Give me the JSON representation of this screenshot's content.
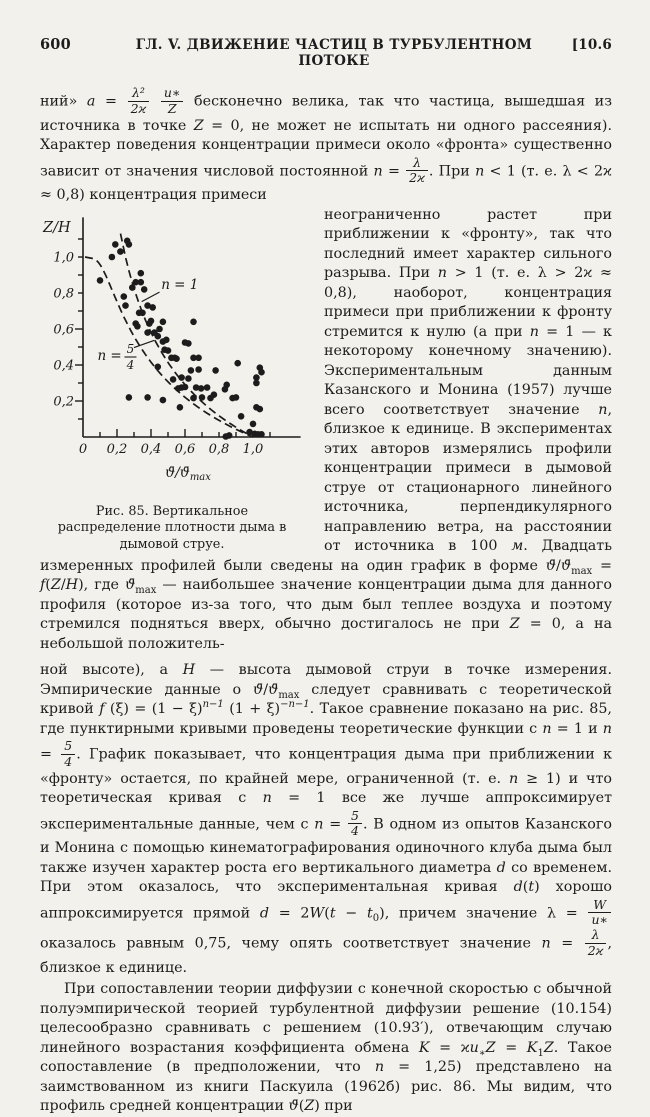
{
  "header": {
    "page_number": "600",
    "chapter": "ГЛ. V. ДВИЖЕНИЕ ЧАСТИЦ В ТУРБУЛЕНТНОМ ПОТОКЕ",
    "section_ref": "[10.6"
  },
  "figure": {
    "caption": "Рис. 85. Вертикальное распределение плотности дыма в дымовой струе."
  },
  "chart_data": {
    "type": "scatter",
    "figure_label": "Рис. 85",
    "xlabel": "ϑ̄/ϑ̄max",
    "ylabel": "Z/H",
    "xlim": [
      0,
      1.28
    ],
    "ylim": [
      0,
      1.22
    ],
    "xtick_values": [
      0,
      0.2,
      0.4,
      0.6,
      0.8,
      1.0
    ],
    "xtick_labels": [
      "0",
      "0,2",
      "0,4",
      "0,6",
      "0,8",
      "1,0"
    ],
    "ytick_values": [
      0.2,
      0.4,
      0.6,
      0.8,
      1.0
    ],
    "ytick_labels": [
      "0,2",
      "0,4",
      "0,6",
      "0,8",
      "1,0"
    ],
    "minor_tick_step": 0.1,
    "grid": false,
    "legend_position": "none",
    "curve_formula": "x = (1 − ξ)^(n−1) (1 + ξ)^(−n−1), ξ = Z/H",
    "curves": [
      {
        "name": "n = 1",
        "n": 1,
        "style": "dashed",
        "y_max": 1.13
      },
      {
        "name": "n = 5/4",
        "n": 1.25,
        "style": "dashed",
        "y_max": 1.0
      }
    ],
    "annotations": [
      {
        "label": "n = 1",
        "x": 0.46,
        "y": 0.845,
        "leader": [
          0.45,
          0.805,
          0.345,
          0.752
        ]
      },
      {
        "label": "n = 5/4",
        "pre": "n = ",
        "frac": [
          "5",
          "4"
        ],
        "x": 0.085,
        "y": 0.45,
        "leader": [
          0.3,
          0.497,
          0.42,
          0.537
        ]
      }
    ],
    "points": [
      [
        0.19,
        1.07
      ],
      [
        0.26,
        1.09
      ],
      [
        0.27,
        1.07
      ],
      [
        0.22,
        1.03
      ],
      [
        0.17,
        1.0
      ],
      [
        0.1,
        0.87
      ],
      [
        0.34,
        0.91
      ],
      [
        0.31,
        0.86
      ],
      [
        0.34,
        0.86
      ],
      [
        0.36,
        0.82
      ],
      [
        0.29,
        0.83
      ],
      [
        0.24,
        0.78
      ],
      [
        0.25,
        0.73
      ],
      [
        0.38,
        0.73
      ],
      [
        0.41,
        0.72
      ],
      [
        0.33,
        0.69
      ],
      [
        0.35,
        0.69
      ],
      [
        0.4,
        0.645
      ],
      [
        0.31,
        0.63
      ],
      [
        0.32,
        0.615
      ],
      [
        0.39,
        0.63
      ],
      [
        0.47,
        0.64
      ],
      [
        0.65,
        0.64
      ],
      [
        0.45,
        0.6
      ],
      [
        0.38,
        0.58
      ],
      [
        0.42,
        0.58
      ],
      [
        0.44,
        0.56
      ],
      [
        0.47,
        0.53
      ],
      [
        0.49,
        0.54
      ],
      [
        0.6,
        0.525
      ],
      [
        0.62,
        0.52
      ],
      [
        0.48,
        0.485
      ],
      [
        0.5,
        0.48
      ],
      [
        0.52,
        0.44
      ],
      [
        0.54,
        0.44
      ],
      [
        0.55,
        0.435
      ],
      [
        0.65,
        0.44
      ],
      [
        0.68,
        0.44
      ],
      [
        0.91,
        0.41
      ],
      [
        1.04,
        0.385
      ],
      [
        0.44,
        0.39
      ],
      [
        0.635,
        0.37
      ],
      [
        0.68,
        0.375
      ],
      [
        0.78,
        0.37
      ],
      [
        1.05,
        0.36
      ],
      [
        0.58,
        0.33
      ],
      [
        0.62,
        0.325
      ],
      [
        1.02,
        0.33
      ],
      [
        0.53,
        0.32
      ],
      [
        0.845,
        0.29
      ],
      [
        1.02,
        0.3
      ],
      [
        0.58,
        0.275
      ],
      [
        0.6,
        0.278
      ],
      [
        0.665,
        0.275
      ],
      [
        0.695,
        0.27
      ],
      [
        0.73,
        0.275
      ],
      [
        0.835,
        0.265
      ],
      [
        0.56,
        0.27
      ],
      [
        0.27,
        0.22
      ],
      [
        0.38,
        0.22
      ],
      [
        0.47,
        0.205
      ],
      [
        0.65,
        0.216
      ],
      [
        0.7,
        0.22
      ],
      [
        0.75,
        0.216
      ],
      [
        0.77,
        0.235
      ],
      [
        0.88,
        0.216
      ],
      [
        0.9,
        0.22
      ],
      [
        1.02,
        0.165
      ],
      [
        1.04,
        0.155
      ],
      [
        0.57,
        0.165
      ],
      [
        0.93,
        0.115
      ],
      [
        1.0,
        0.073
      ],
      [
        0.98,
        0.027
      ],
      [
        1.01,
        0.018
      ],
      [
        1.03,
        0.015
      ],
      [
        1.05,
        0.015
      ],
      [
        0.86,
        0.009
      ],
      [
        0.84,
        0.003
      ]
    ]
  },
  "paragraphs": [
    [
      {
        "t": "ний» "
      },
      {
        "i": "a"
      },
      {
        "t": " = "
      },
      {
        "frac": [
          "λ²",
          "2ϰ"
        ]
      },
      {
        "t": " "
      },
      {
        "frac": [
          "u∗",
          "Z"
        ]
      },
      {
        "t": " бесконечно велика, так что частица, вышедшая из источника в точке "
      },
      {
        "i": "Z"
      },
      {
        "t": " = 0, не может не испытать ни одного рассеяния). Характер поведения концентрации примеси около «фронта» существенно зависит от значения числовой постоянной "
      },
      {
        "i": "n"
      },
      {
        "t": " = "
      },
      {
        "frac": [
          "λ",
          "2ϰ"
        ]
      },
      {
        "t": ". При "
      },
      {
        "i": "n"
      },
      {
        "t": " < 1 (т. е. λ < 2ϰ ≈ 0,8) концентрация примеси"
      }
    ],
    [
      {
        "t": "неограниченно растет при приближении к «фронту», так что последний имеет характер сильного разрыва. При "
      },
      {
        "i": "n"
      },
      {
        "t": " > 1 (т. е. λ > 2ϰ ≈ 0,8), наоборот, концентрация примеси при приближении к фронту стремится к нулю (а при "
      },
      {
        "i": "n"
      },
      {
        "t": " = 1 — к некоторому конечному значению). Экспериментальным данным Казанского и Монина (1957) лучше всего соответствует значение "
      },
      {
        "i": "n"
      },
      {
        "t": ", близкое к единице. В экспериментах этих авторов измерялись профили концентрации примеси в дымовой струе от стационарного линейного источника, перпендикулярного направлению ветра, на расстоянии от источника в 100 "
      },
      {
        "i": "м"
      },
      {
        "t": ". Двадцать измеренных профилей были сведены на один график в форме "
      },
      {
        "i": "ϑ̄"
      },
      {
        "t": "/"
      },
      {
        "i": "ϑ̄"
      },
      {
        "sub": "max"
      },
      {
        "t": " = "
      },
      {
        "i": "f"
      },
      {
        "t": "("
      },
      {
        "i": "Z"
      },
      {
        "t": "/"
      },
      {
        "i": "H"
      },
      {
        "t": "), где "
      },
      {
        "i": "ϑ̄"
      },
      {
        "sub": "max"
      },
      {
        "t": " — наибольшее значение концентрации дыма для данного профиля (которое из-за того, что дым был теплее воздуха и поэтому стремился подняться вверх, обычно достигалось не при "
      },
      {
        "i": "Z"
      },
      {
        "t": " = 0, а на небольшой положитель-"
      }
    ],
    [
      {
        "t": "ной высоте), а "
      },
      {
        "i": "H"
      },
      {
        "t": " — высота дымовой струи в точке измерения. Эмпирические данные о "
      },
      {
        "i": "ϑ̄"
      },
      {
        "t": "/"
      },
      {
        "i": "ϑ̄"
      },
      {
        "sub": "max"
      },
      {
        "t": " следует сравнивать с теоретической кривой "
      },
      {
        "i": "f"
      },
      {
        "t": " (ξ) = (1 − ξ)"
      },
      {
        "sup": "n−1"
      },
      {
        "t": " (1 + ξ)"
      },
      {
        "sup": "−n−1"
      },
      {
        "t": ". Такое сравнение показано на рис. 85, где пунктирными кривыми проведены теоретические функции с "
      },
      {
        "i": "n"
      },
      {
        "t": " = 1 и "
      },
      {
        "i": "n"
      },
      {
        "t": " = "
      },
      {
        "frac": [
          "5",
          "4"
        ]
      },
      {
        "t": ". График показывает, что концентрация дыма при приближении к «фронту» остается, по крайней мере, ограниченной (т. е. "
      },
      {
        "i": "n"
      },
      {
        "t": " ≥ 1) и что теоретическая кривая с "
      },
      {
        "i": "n"
      },
      {
        "t": " = 1 все же лучше аппроксимирует экспериментальные данные, чем с "
      },
      {
        "i": "n"
      },
      {
        "t": " = "
      },
      {
        "frac": [
          "5",
          "4"
        ]
      },
      {
        "t": ". В одном из опытов Казанского и Монина с помощью кинематографирования одиночного клуба дыма был также изучен характер роста его вертикального диаметра "
      },
      {
        "i": "d"
      },
      {
        "t": " со временем. При этом оказалось, что экспериментальная кривая "
      },
      {
        "i": "d"
      },
      {
        "t": "("
      },
      {
        "i": "t"
      },
      {
        "t": ") хорошо аппроксимируется прямой "
      },
      {
        "i": "d"
      },
      {
        "t": " = 2"
      },
      {
        "i": "W"
      },
      {
        "t": "("
      },
      {
        "i": "t"
      },
      {
        "t": " − "
      },
      {
        "i": "t"
      },
      {
        "sub": "0"
      },
      {
        "t": "), причем значение λ = "
      },
      {
        "frac": [
          "W",
          "u∗"
        ]
      },
      {
        "t": " оказалось равным 0,75, чему опять соответствует значение "
      },
      {
        "i": "n"
      },
      {
        "t": " = "
      },
      {
        "frac": [
          "λ",
          "2ϰ"
        ]
      },
      {
        "t": ", близкое к единице."
      }
    ],
    [
      {
        "t": "При сопоставлении теории диффузии с конечной скоростью с обычной полуэмпирической теорией турбулентной диффузии решение (10.154) целесообразно сравнивать с решением (10.93′), отвечающим случаю линейного возрастания коэффициента обмена "
      },
      {
        "i": "K"
      },
      {
        "t": " = ϰ"
      },
      {
        "i": "u"
      },
      {
        "sub": "∗"
      },
      {
        "i": "Z"
      },
      {
        "t": " = "
      },
      {
        "i": "K"
      },
      {
        "sub": "1"
      },
      {
        "i": "Z"
      },
      {
        "t": ". Такое сопоставление (в предположении, что "
      },
      {
        "i": "n"
      },
      {
        "t": " = 1,25) представлено на заимствованном из книги Паскуила (1962б) рис. 86. Мы видим, что профиль средней концентрации "
      },
      {
        "i": "ϑ̄"
      },
      {
        "t": "("
      },
      {
        "i": "Z"
      },
      {
        "t": ") при"
      }
    ]
  ]
}
